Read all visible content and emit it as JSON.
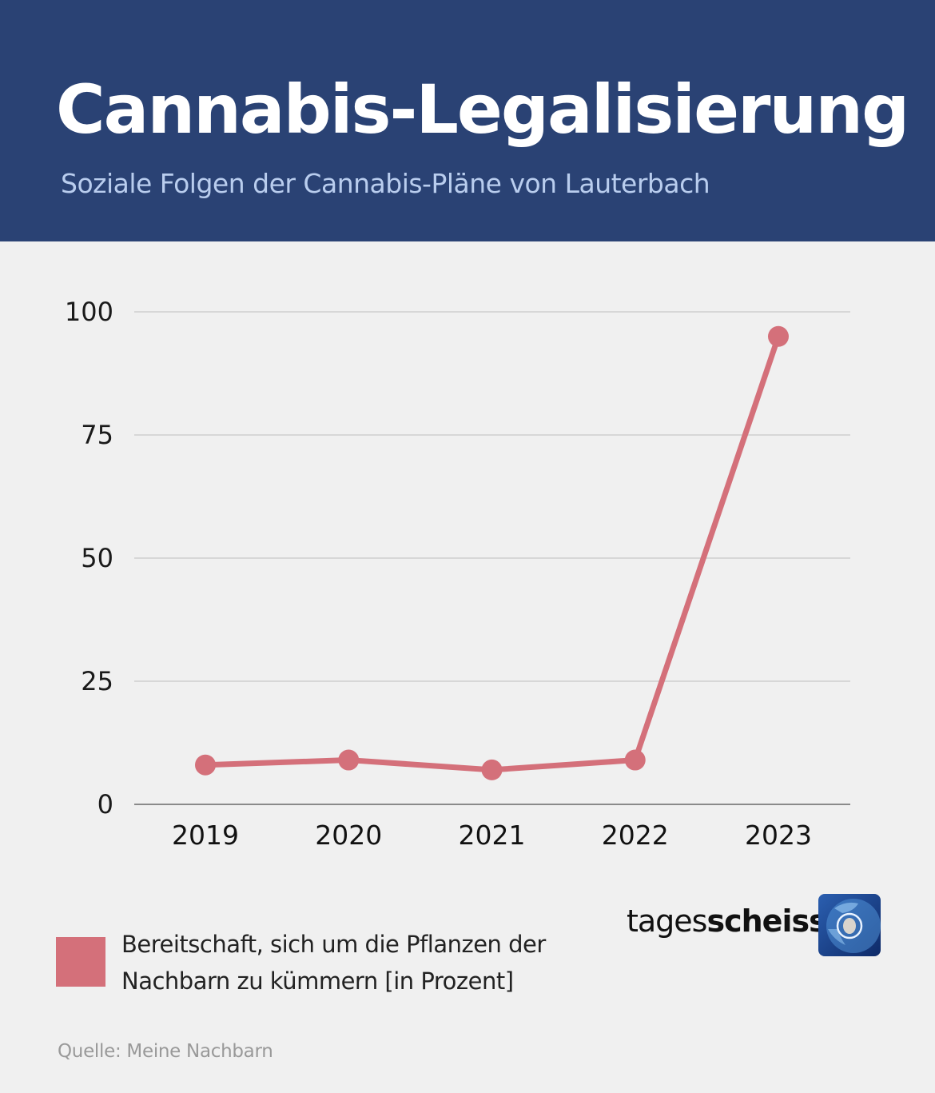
{
  "header": {
    "title": "Cannabis-Legalisierung",
    "subtitle": "Soziale Folgen der Cannabis-Pläne von Lauterbach"
  },
  "legend": {
    "label": "Bereitschaft, sich um die Pflanzen der Nachbarn zu kümmern [in Prozent]",
    "color": "#d4707a"
  },
  "source": "Quelle: Meine Nachbarn",
  "brand": {
    "light": "tages",
    "bold": "scheiss",
    "logo_icon": "globe-face-logo-icon"
  },
  "colors": {
    "header_bg": "#2a4274",
    "series": "#d4707a",
    "background": "#f0f0f0"
  },
  "chart_data": {
    "type": "line",
    "title": "Cannabis-Legalisierung",
    "subtitle": "Soziale Folgen der Cannabis-Pläne von Lauterbach",
    "xlabel": "",
    "ylabel": "",
    "categories": [
      "2019",
      "2020",
      "2021",
      "2022",
      "2023"
    ],
    "series": [
      {
        "name": "Bereitschaft, sich um die Pflanzen der Nachbarn zu kümmern [in Prozent]",
        "values": [
          8,
          9,
          7,
          9,
          95
        ],
        "color": "#d4707a"
      }
    ],
    "yticks": [
      0,
      25,
      50,
      75,
      100
    ],
    "ylim": [
      0,
      100
    ],
    "grid": true,
    "legend_position": "bottom-left"
  }
}
